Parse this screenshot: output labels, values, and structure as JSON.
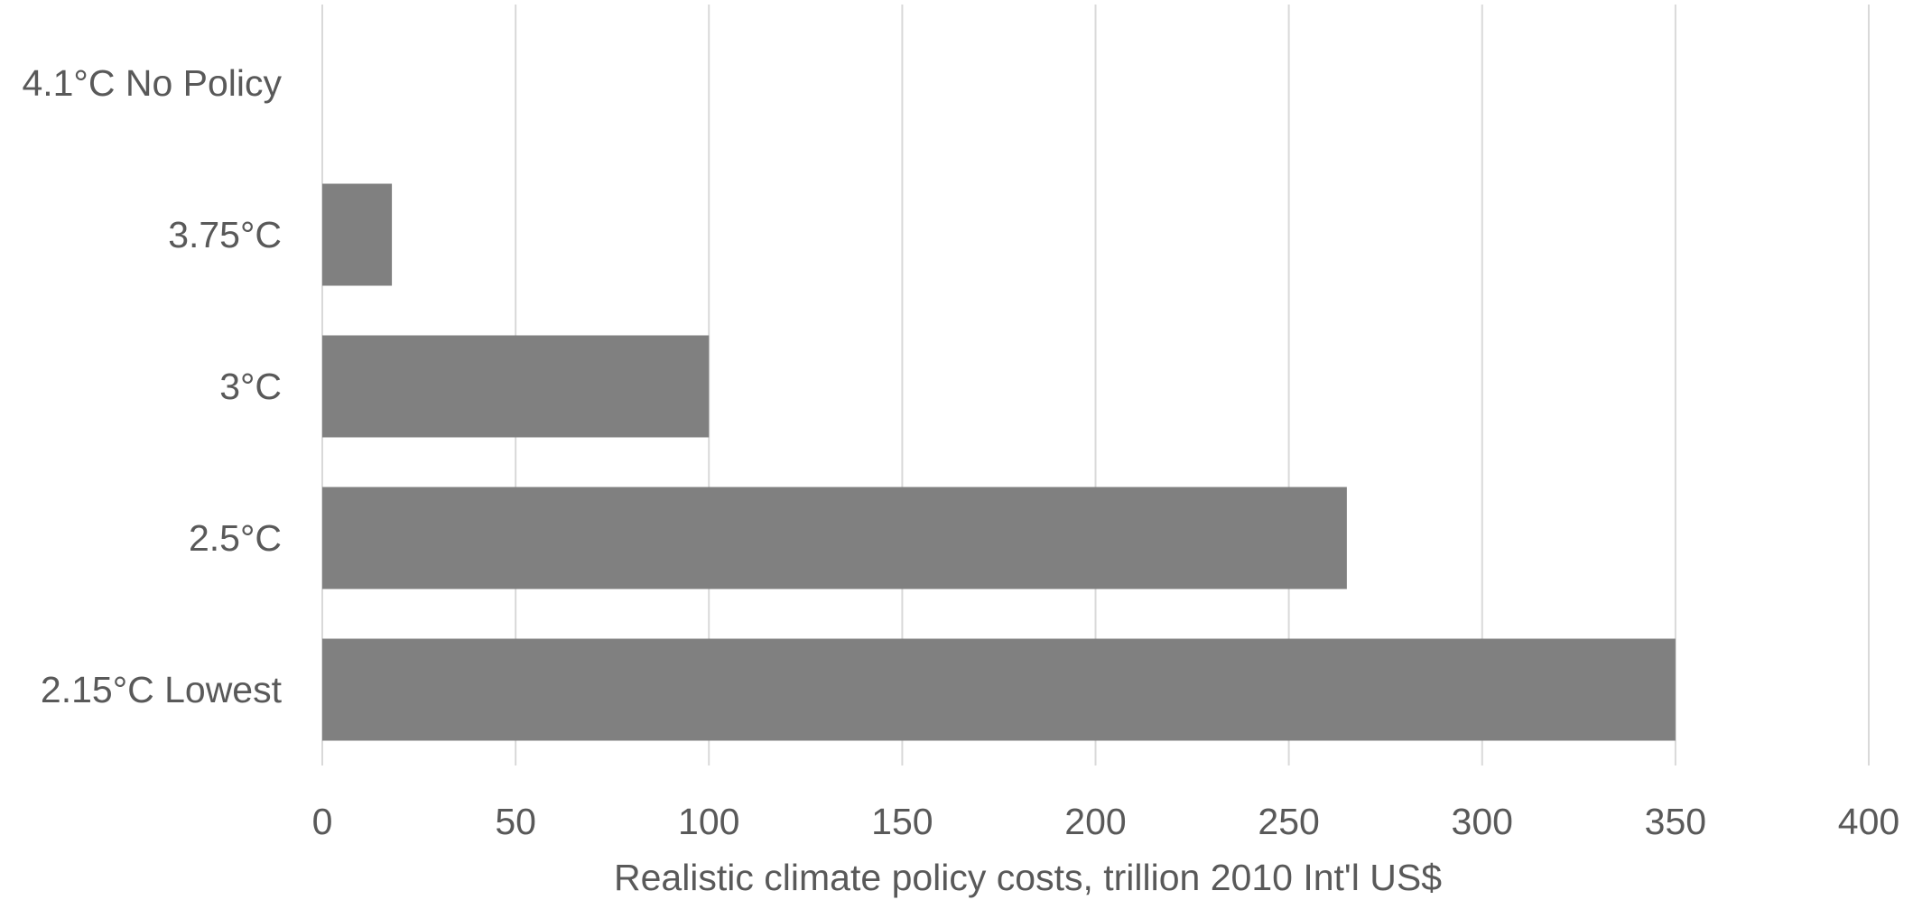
{
  "chart_data": {
    "type": "bar",
    "orientation": "horizontal",
    "categories": [
      "4.1°C No Policy",
      "3.75°C",
      "3°C",
      "2.5°C",
      "2.15°C Lowest"
    ],
    "values": [
      0,
      18,
      100,
      265,
      350
    ],
    "title": "",
    "xlabel": "Realistic climate policy costs, trillion 2010 Int'l US$",
    "ylabel": "",
    "xlim": [
      0,
      400
    ],
    "xticks": [
      0,
      50,
      100,
      150,
      200,
      250,
      300,
      350,
      400
    ],
    "xtick_labels": [
      "0",
      "50",
      "100",
      "150",
      "200",
      "250",
      "300",
      "350",
      "400"
    ],
    "grid": "vertical",
    "legend": "none",
    "bar_color": "#808080",
    "grid_color": "#d9d9d9",
    "text_color": "#595959"
  }
}
